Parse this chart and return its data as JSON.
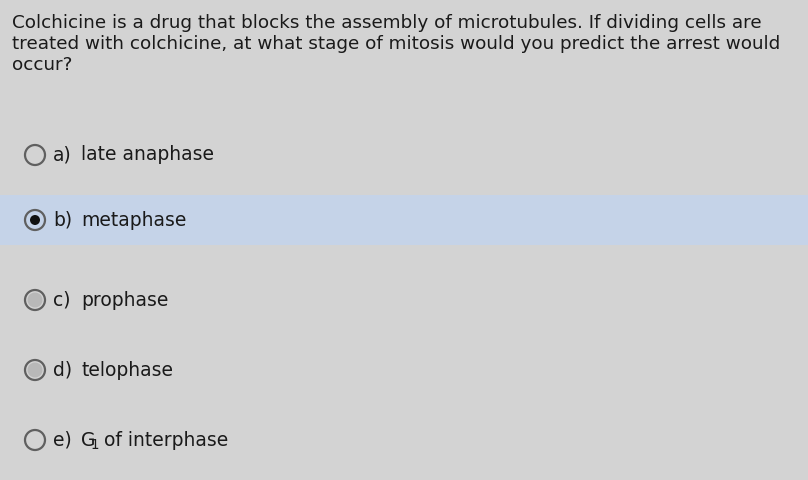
{
  "background_color": "#d3d3d3",
  "question_text_line1": "Colchicine is a drug that blocks the assembly of microtubules. If dividing cells are",
  "question_text_line2": "treated with colchicine, at what stage of mitosis would you predict the arrest would",
  "question_text_line3": "occur?",
  "options": [
    {
      "label": "a)",
      "text": "late anaphase",
      "selected": false,
      "shaded": false
    },
    {
      "label": "b)",
      "text": "metaphase",
      "selected": true,
      "shaded": false
    },
    {
      "label": "c)",
      "text": "prophase",
      "selected": false,
      "shaded": true
    },
    {
      "label": "d)",
      "text": "telophase",
      "selected": false,
      "shaded": true
    },
    {
      "label": "e)",
      "text_parts": [
        "G",
        "1",
        " of interphase"
      ],
      "selected": false,
      "shaded": false
    }
  ],
  "highlight_option_index": 1,
  "highlight_color": "#c5d3e8",
  "text_color": "#1a1a1a",
  "question_fontsize": 13.2,
  "option_fontsize": 13.5,
  "fig_width": 8.08,
  "fig_height": 4.8
}
